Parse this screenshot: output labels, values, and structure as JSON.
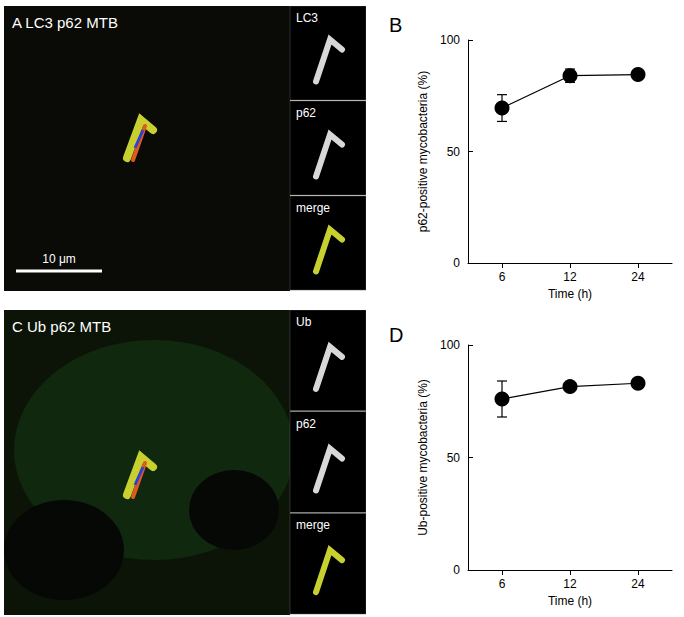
{
  "panels": [
    {
      "title": "A LC3 p62 MTB",
      "insets": [
        "LC3",
        "p62",
        "merge"
      ],
      "scale_bar": "10 μm"
    },
    {
      "title": "C Ub p62 MTB",
      "insets": [
        "Ub",
        "p62",
        "merge"
      ]
    }
  ],
  "chart_data": [
    {
      "type": "line",
      "title": "B",
      "x_label": "Time (h)",
      "y_label": "p62-positive mycobacteria (%)",
      "categories": [
        "6",
        "12",
        "24"
      ],
      "values": [
        69.5,
        84,
        84.5
      ],
      "errors": [
        6,
        3,
        1.5
      ],
      "ylim": [
        0,
        100
      ],
      "yticks": [
        0,
        50,
        100
      ],
      "color": "#000000",
      "marker": "circle",
      "grid": false
    },
    {
      "type": "line",
      "title": "D",
      "x_label": "Time (h)",
      "y_label": "Ub-positive mycobacteria (%)",
      "categories": [
        "6",
        "12",
        "24"
      ],
      "values": [
        76,
        81.5,
        83
      ],
      "errors": [
        8,
        2,
        1.5
      ],
      "ylim": [
        0,
        100
      ],
      "yticks": [
        0,
        50,
        100
      ],
      "color": "#000000",
      "marker": "circle",
      "grid": false
    }
  ]
}
